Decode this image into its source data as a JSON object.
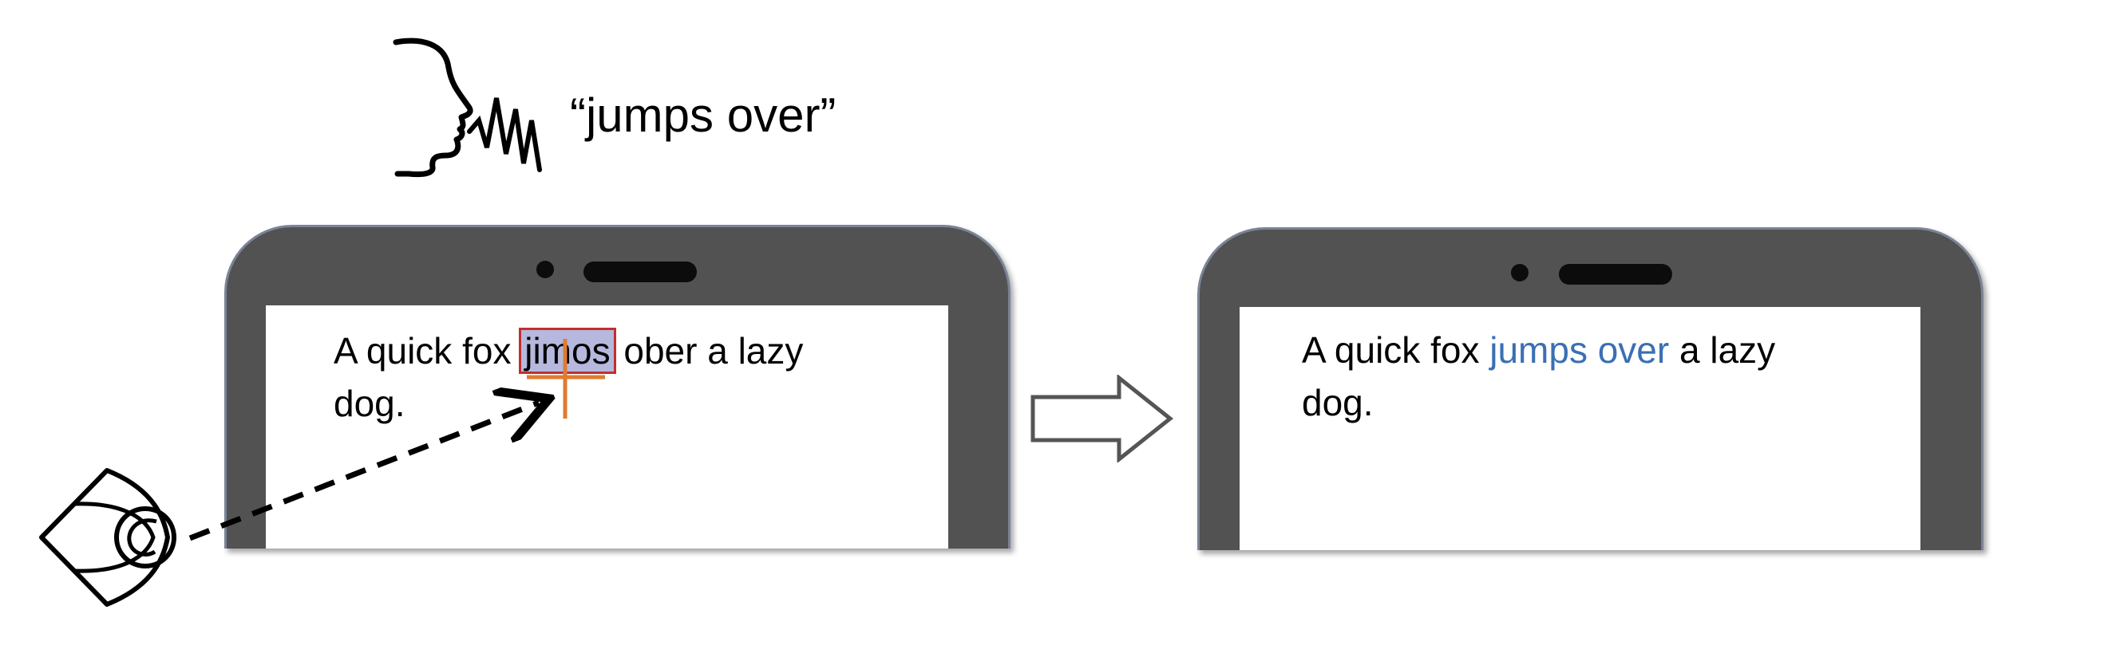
{
  "speech": {
    "quote": "“jumps over”",
    "icon": "speaking-head-icon"
  },
  "before_phone": {
    "line1_prefix": "A quick fox ",
    "highlighted_word": "jimos",
    "line1_suffix": " ober a lazy",
    "line2": "dog."
  },
  "after_phone": {
    "line1_prefix": "A quick fox ",
    "corrected_words": "jumps over",
    "line1_suffix": " a lazy",
    "line2": "dog."
  },
  "icons": {
    "eye": "eye-icon",
    "gaze": "dashed-gaze-arrow",
    "cursor": "crosshair-icon",
    "transition": "right-arrow-icon"
  },
  "colors": {
    "phone_body": "#525252",
    "highlight_fill": "#b6b8dd",
    "highlight_border": "#c0302c",
    "crosshair": "#e07b30",
    "corrected_text": "#3a6fb3"
  }
}
